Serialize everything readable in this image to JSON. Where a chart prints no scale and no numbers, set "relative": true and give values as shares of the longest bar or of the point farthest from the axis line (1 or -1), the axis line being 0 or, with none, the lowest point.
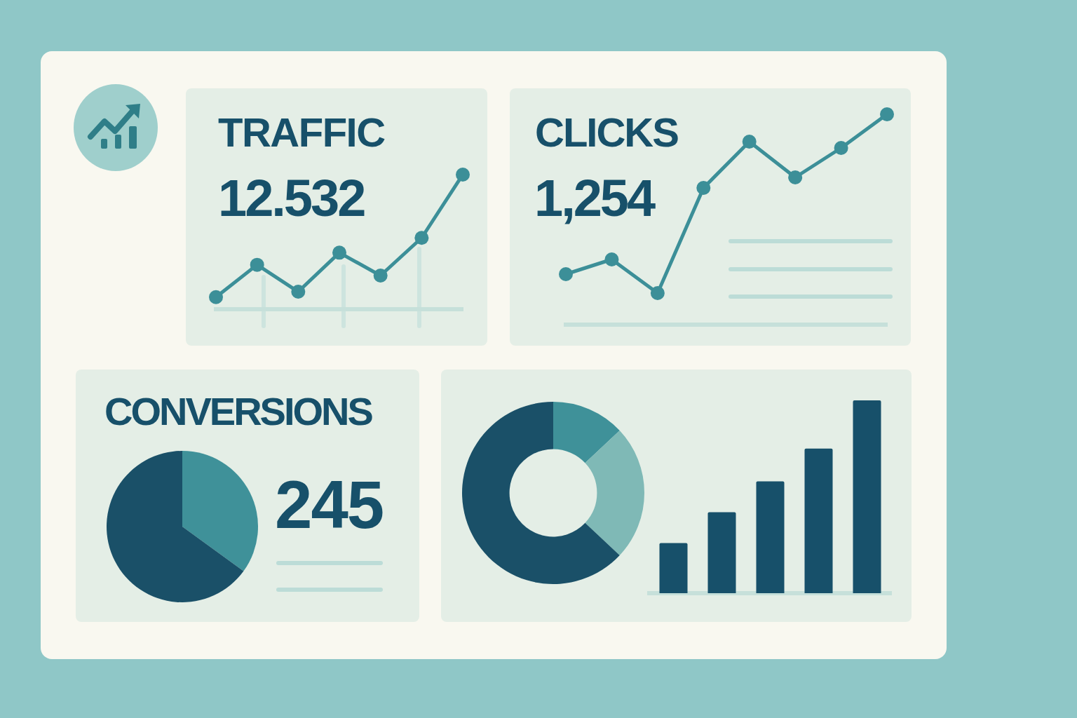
{
  "chart_data": [
    {
      "type": "line",
      "title": "TRAFFIC",
      "annotations": [
        "12.532"
      ],
      "categories": [
        null,
        null,
        null,
        null,
        null,
        null,
        null
      ],
      "relative": true,
      "series": [
        {
          "color": "#3c8f98",
          "values": [
            0.09,
            0.33,
            0.13,
            0.42,
            0.25,
            0.53,
            1
          ]
        }
      ],
      "marker": "circle",
      "line_style": "solid"
    },
    {
      "type": "line",
      "title": "CLICKS",
      "annotations": [
        "1,254"
      ],
      "categories": [
        null,
        null,
        null,
        null,
        null,
        null,
        null,
        null
      ],
      "relative": true,
      "series": [
        {
          "color": "#3c8f98",
          "values": [
            0.24,
            0.31,
            0.15,
            0.65,
            0.87,
            0.7,
            0.84,
            1
          ]
        }
      ],
      "marker": "circle",
      "line_style": "solid"
    },
    {
      "type": "pie",
      "title": "CONVERSIONS",
      "annotations": [
        "245"
      ],
      "categories": [
        null,
        null
      ],
      "values": [
        35,
        65
      ],
      "colors": [
        "#3f9199",
        "#1a5068"
      ]
    },
    {
      "type": "donut",
      "categories": [
        null,
        null,
        null
      ],
      "values": [
        13,
        24,
        63
      ],
      "colors": [
        "#3f9199",
        "#7fb9b6",
        "#1a5068"
      ]
    },
    {
      "type": "bar",
      "categories": [
        null,
        null,
        null,
        null,
        null
      ],
      "relative": true,
      "values": [
        0.26,
        0.42,
        0.58,
        0.75,
        1
      ],
      "color": "#17506a"
    }
  ]
}
